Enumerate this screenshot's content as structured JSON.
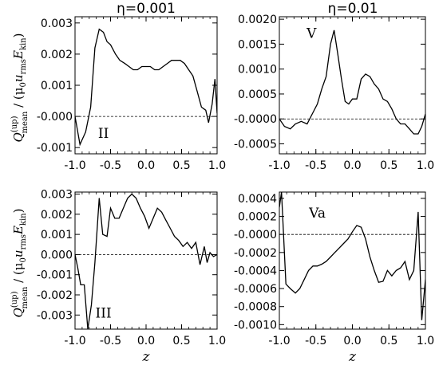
{
  "figure": {
    "col_titles": [
      "η=0.001",
      "η=0.01"
    ],
    "ylabel_main": "Q",
    "ylabel_sup": "(up)",
    "ylabel_sub": "mean",
    "ylabel_rest": " / (μ",
    "ylabel_sub0": "0",
    "ylabel_u": "u",
    "ylabel_rms": "rms",
    "ylabel_E": "E",
    "ylabel_kin": "kin",
    "ylabel_close": ")",
    "xlabel": "z"
  },
  "chart_data": [
    {
      "type": "line",
      "label": "II",
      "title": "η=0.001",
      "xlim": [
        -1.0,
        1.0
      ],
      "ylim": [
        -0.0012,
        0.0032
      ],
      "xticks": [
        "-1.0",
        "-0.5",
        "0.0",
        "0.5",
        "1.0"
      ],
      "xtick_values": [
        -1.0,
        -0.5,
        0.0,
        0.5,
        1.0
      ],
      "yticks": [
        "-0.001",
        "-0.000",
        "0.001",
        "0.002",
        "0.003"
      ],
      "ytick_values": [
        -0.001,
        0.0,
        0.001,
        0.002,
        0.003
      ],
      "show_xlabel": false,
      "zero_line": true,
      "x": [
        -1.0,
        -0.93,
        -0.85,
        -0.78,
        -0.72,
        -0.66,
        -0.6,
        -0.55,
        -0.5,
        -0.43,
        -0.37,
        -0.3,
        -0.24,
        -0.18,
        -0.12,
        -0.06,
        0.0,
        0.06,
        0.12,
        0.18,
        0.24,
        0.3,
        0.36,
        0.42,
        0.48,
        0.54,
        0.6,
        0.66,
        0.72,
        0.78,
        0.84,
        0.88,
        0.93,
        0.97,
        1.0
      ],
      "y": [
        0.0,
        -0.0009,
        -0.0005,
        0.0003,
        0.0022,
        0.0028,
        0.0027,
        0.0024,
        0.0023,
        0.002,
        0.0018,
        0.0017,
        0.0016,
        0.0015,
        0.0015,
        0.0016,
        0.0016,
        0.0016,
        0.0015,
        0.0015,
        0.0016,
        0.0017,
        0.0018,
        0.0018,
        0.0018,
        0.0017,
        0.0015,
        0.0013,
        0.0008,
        0.0003,
        0.0002,
        -0.0002,
        0.0004,
        0.0012,
        0.0001
      ]
    },
    {
      "type": "line",
      "label": "V",
      "title": "η=0.01",
      "xlim": [
        -1.0,
        1.0
      ],
      "ylim": [
        -0.0007,
        0.00205
      ],
      "xticks": [
        "-1.0",
        "-0.5",
        "0.0",
        "0.5",
        "1.0"
      ],
      "xtick_values": [
        -1.0,
        -0.5,
        0.0,
        0.5,
        1.0
      ],
      "yticks": [
        "-0.0005",
        "-0.0000",
        "0.0005",
        "0.0010",
        "0.0015",
        "0.0020"
      ],
      "ytick_values": [
        -0.0005,
        0.0,
        0.0005,
        0.001,
        0.0015,
        0.002
      ],
      "show_xlabel": false,
      "zero_line": true,
      "x": [
        -1.0,
        -0.93,
        -0.85,
        -0.78,
        -0.7,
        -0.62,
        -0.55,
        -0.48,
        -0.42,
        -0.36,
        -0.3,
        -0.25,
        -0.2,
        -0.15,
        -0.1,
        -0.05,
        0.0,
        0.06,
        0.12,
        0.18,
        0.24,
        0.3,
        0.36,
        0.42,
        0.48,
        0.54,
        0.6,
        0.66,
        0.72,
        0.78,
        0.84,
        0.9,
        0.95,
        1.0
      ],
      "y": [
        0.0,
        -0.00015,
        -0.0002,
        -0.0001,
        -5e-05,
        -0.0001,
        0.0001,
        0.0003,
        0.0006,
        0.00085,
        0.0015,
        0.00178,
        0.0013,
        0.0008,
        0.00035,
        0.0003,
        0.0004,
        0.0004,
        0.0008,
        0.0009,
        0.00085,
        0.0007,
        0.0006,
        0.0004,
        0.00035,
        0.0002,
        0.0,
        -0.0001,
        -0.0001,
        -0.0002,
        -0.0003,
        -0.0003,
        -0.00015,
        0.0001
      ]
    },
    {
      "type": "line",
      "label": "III",
      "title": "",
      "xlim": [
        -1.0,
        1.0
      ],
      "ylim": [
        -0.0037,
        0.0031
      ],
      "xticks": [
        "-1.0",
        "-0.5",
        "0.0",
        "0.5",
        "1.0"
      ],
      "xtick_values": [
        -1.0,
        -0.5,
        0.0,
        0.5,
        1.0
      ],
      "yticks": [
        "-0.003",
        "-0.002",
        "-0.001",
        "0.000",
        "0.001",
        "0.002",
        "0.003"
      ],
      "ytick_values": [
        -0.003,
        -0.002,
        -0.001,
        0.0,
        0.001,
        0.002,
        0.003
      ],
      "show_xlabel": true,
      "zero_line": true,
      "x": [
        -1.0,
        -0.96,
        -0.92,
        -0.87,
        -0.82,
        -0.77,
        -0.72,
        -0.66,
        -0.61,
        -0.55,
        -0.5,
        -0.44,
        -0.38,
        -0.32,
        -0.26,
        -0.2,
        -0.14,
        -0.08,
        -0.02,
        0.04,
        0.1,
        0.16,
        0.22,
        0.28,
        0.34,
        0.4,
        0.46,
        0.52,
        0.58,
        0.64,
        0.7,
        0.76,
        0.82,
        0.86,
        0.9,
        0.95,
        1.0
      ],
      "y": [
        0.0,
        -0.0007,
        -0.0015,
        -0.0015,
        -0.0037,
        -0.0025,
        -0.0004,
        0.0028,
        0.001,
        0.0009,
        0.0023,
        0.0018,
        0.0018,
        0.0023,
        0.0028,
        0.003,
        0.0028,
        0.0023,
        0.0019,
        0.0013,
        0.0018,
        0.0023,
        0.0021,
        0.0017,
        0.0013,
        0.0009,
        0.0007,
        0.0004,
        0.0006,
        0.0003,
        0.0006,
        -0.0005,
        0.0004,
        -0.0004,
        0.0001,
        -0.0001,
        0.0
      ]
    },
    {
      "type": "line",
      "label": "Va",
      "title": "",
      "xlim": [
        -1.0,
        1.0
      ],
      "ylim": [
        -0.00105,
        0.00047
      ],
      "xticks": [
        "-1.0",
        "-0.5",
        "0.0",
        "0.5",
        "1.0"
      ],
      "xtick_values": [
        -1.0,
        -0.5,
        0.0,
        0.5,
        1.0
      ],
      "yticks": [
        "-0.0010",
        "-0.0008",
        "-0.0006",
        "-0.0004",
        "-0.0002",
        "-0.0000",
        "0.0002",
        "0.0004"
      ],
      "ytick_values": [
        -0.001,
        -0.0008,
        -0.0006,
        -0.0004,
        -0.0002,
        0.0,
        0.0002,
        0.0004
      ],
      "show_xlabel": true,
      "zero_line": true,
      "x": [
        -1.0,
        -0.97,
        -0.91,
        -0.85,
        -0.78,
        -0.72,
        -0.66,
        -0.6,
        -0.54,
        -0.48,
        -0.42,
        -0.36,
        -0.3,
        -0.24,
        -0.18,
        -0.12,
        -0.06,
        0.0,
        0.06,
        0.12,
        0.18,
        0.24,
        0.3,
        0.36,
        0.42,
        0.48,
        0.54,
        0.6,
        0.66,
        0.72,
        0.78,
        0.84,
        0.9,
        0.95,
        1.0
      ],
      "y": [
        0.0003,
        0.00047,
        -0.00055,
        -0.0006,
        -0.00065,
        -0.0006,
        -0.0005,
        -0.0004,
        -0.00035,
        -0.00035,
        -0.00033,
        -0.0003,
        -0.00025,
        -0.0002,
        -0.00015,
        -0.0001,
        -5e-05,
        3e-05,
        0.0001,
        8e-05,
        -5e-05,
        -0.00025,
        -0.0004,
        -0.00053,
        -0.00052,
        -0.0004,
        -0.00046,
        -0.0004,
        -0.00037,
        -0.0003,
        -0.0005,
        -0.0004,
        0.00025,
        -0.00095,
        -0.0005
      ]
    }
  ]
}
